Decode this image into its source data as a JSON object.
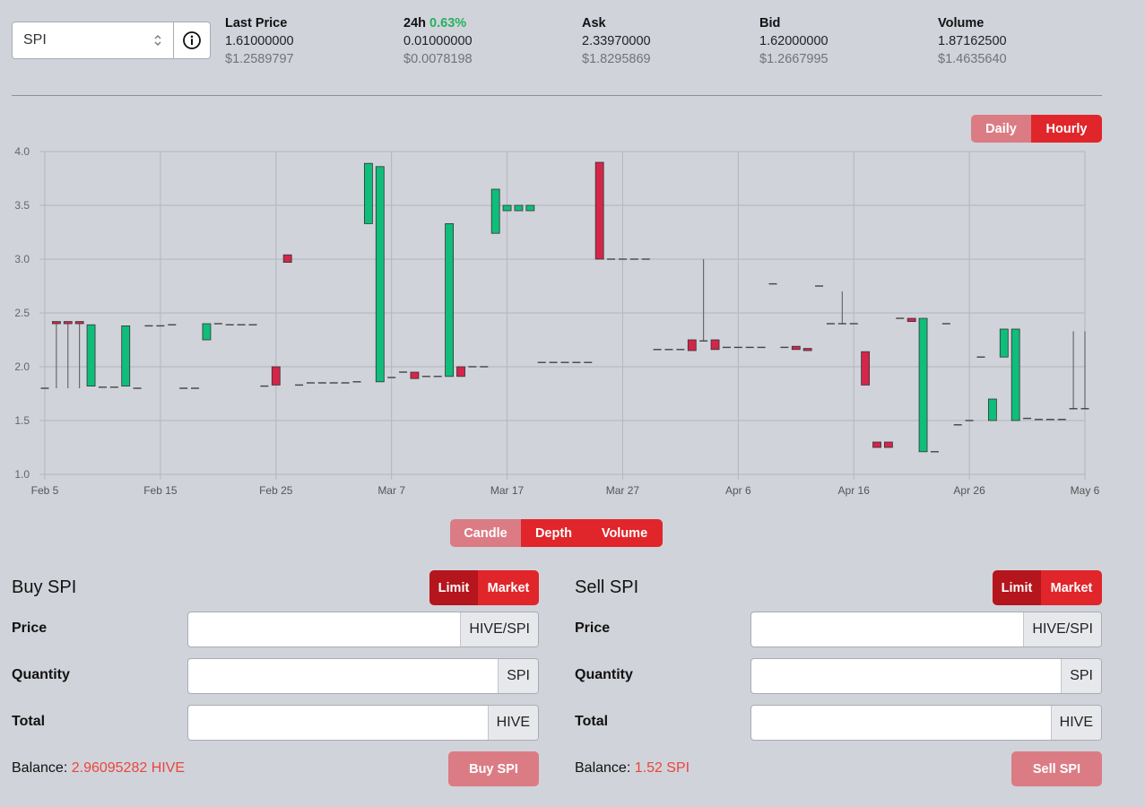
{
  "symbol": {
    "value": "SPI"
  },
  "stats": {
    "last_price": {
      "label": "Last Price",
      "value": "1.61000000",
      "usd": "$1.2589797"
    },
    "change_24h": {
      "label": "24h",
      "pct": "0.63%",
      "value": "0.01000000",
      "usd": "$0.0078198"
    },
    "ask": {
      "label": "Ask",
      "value": "2.33970000",
      "usd": "$1.8295869"
    },
    "bid": {
      "label": "Bid",
      "value": "1.62000000",
      "usd": "$1.2667995"
    },
    "volume": {
      "label": "Volume",
      "value": "1.87162500",
      "usd": "$1.4635640"
    }
  },
  "interval_toggle": {
    "daily": "Daily",
    "hourly": "Hourly",
    "active": "Hourly"
  },
  "chart_toggle": {
    "candle": "Candle",
    "depth": "Depth",
    "volume": "Volume",
    "active": "Candle"
  },
  "colors": {
    "up": "#10bd7a",
    "down": "#d3264a",
    "accent": "#e0262b"
  },
  "chart_data": {
    "type": "candlestick",
    "x_ticks": [
      "Feb 5",
      "Feb 15",
      "Feb 25",
      "Mar 7",
      "Mar 17",
      "Mar 27",
      "Apr 6",
      "Apr 16",
      "Apr 26",
      "May 6"
    ],
    "y_ticks": [
      "1.0",
      "1.5",
      "2.0",
      "2.5",
      "3.0",
      "3.5",
      "4.0"
    ],
    "ylim": [
      1.0,
      4.0
    ],
    "x_range": [
      "Feb 5",
      "May 6"
    ],
    "grid": true,
    "candles": [
      {
        "d": 0,
        "o": 1.8,
        "h": 1.8,
        "l": 1.8,
        "c": 1.8
      },
      {
        "d": 1,
        "o": 2.42,
        "h": 2.42,
        "l": 1.8,
        "c": 2.4
      },
      {
        "d": 2,
        "o": 2.42,
        "h": 2.42,
        "l": 1.8,
        "c": 2.4
      },
      {
        "d": 3,
        "o": 2.42,
        "h": 2.42,
        "l": 1.8,
        "c": 2.4
      },
      {
        "d": 4,
        "o": 1.82,
        "h": 2.39,
        "l": 1.82,
        "c": 2.39
      },
      {
        "d": 5,
        "o": 1.81,
        "h": 1.81,
        "l": 1.81,
        "c": 1.81
      },
      {
        "d": 6,
        "o": 1.81,
        "h": 1.81,
        "l": 1.81,
        "c": 1.81
      },
      {
        "d": 7,
        "o": 1.82,
        "h": 2.38,
        "l": 1.82,
        "c": 2.38
      },
      {
        "d": 8,
        "o": 1.8,
        "h": 1.8,
        "l": 1.8,
        "c": 1.8
      },
      {
        "d": 9,
        "o": 2.38,
        "h": 2.38,
        "l": 2.38,
        "c": 2.38
      },
      {
        "d": 10,
        "o": 2.38,
        "h": 2.38,
        "l": 2.38,
        "c": 2.38
      },
      {
        "d": 11,
        "o": 2.39,
        "h": 2.39,
        "l": 2.39,
        "c": 2.39
      },
      {
        "d": 12,
        "o": 1.8,
        "h": 1.8,
        "l": 1.8,
        "c": 1.8
      },
      {
        "d": 13,
        "o": 1.8,
        "h": 1.8,
        "l": 1.8,
        "c": 1.8
      },
      {
        "d": 14,
        "o": 2.25,
        "h": 2.4,
        "l": 2.25,
        "c": 2.4
      },
      {
        "d": 15,
        "o": 2.4,
        "h": 2.4,
        "l": 2.4,
        "c": 2.4
      },
      {
        "d": 16,
        "o": 2.39,
        "h": 2.39,
        "l": 2.39,
        "c": 2.39
      },
      {
        "d": 17,
        "o": 2.39,
        "h": 2.39,
        "l": 2.39,
        "c": 2.39
      },
      {
        "d": 18,
        "o": 2.39,
        "h": 2.39,
        "l": 2.39,
        "c": 2.39
      },
      {
        "d": 19,
        "o": 1.82,
        "h": 1.82,
        "l": 1.82,
        "c": 1.82
      },
      {
        "d": 20,
        "o": 2.0,
        "h": 2.0,
        "l": 1.83,
        "c": 1.83
      },
      {
        "d": 21,
        "o": 3.04,
        "h": 3.04,
        "l": 2.97,
        "c": 2.97
      },
      {
        "d": 22,
        "o": 1.83,
        "h": 1.83,
        "l": 1.83,
        "c": 1.83
      },
      {
        "d": 23,
        "o": 1.85,
        "h": 1.85,
        "l": 1.85,
        "c": 1.85
      },
      {
        "d": 24,
        "o": 1.85,
        "h": 1.85,
        "l": 1.85,
        "c": 1.85
      },
      {
        "d": 25,
        "o": 1.85,
        "h": 1.85,
        "l": 1.85,
        "c": 1.85
      },
      {
        "d": 26,
        "o": 1.85,
        "h": 1.85,
        "l": 1.85,
        "c": 1.85
      },
      {
        "d": 27,
        "o": 1.86,
        "h": 1.86,
        "l": 1.86,
        "c": 1.86
      },
      {
        "d": 28,
        "o": 3.33,
        "h": 3.89,
        "l": 3.33,
        "c": 3.89
      },
      {
        "d": 29,
        "o": 1.86,
        "h": 3.86,
        "l": 1.86,
        "c": 3.86
      },
      {
        "d": 30,
        "o": 1.9,
        "h": 1.9,
        "l": 1.9,
        "c": 1.9
      },
      {
        "d": 31,
        "o": 1.95,
        "h": 1.95,
        "l": 1.95,
        "c": 1.95
      },
      {
        "d": 32,
        "o": 1.95,
        "h": 1.95,
        "l": 1.89,
        "c": 1.89
      },
      {
        "d": 33,
        "o": 1.91,
        "h": 1.91,
        "l": 1.91,
        "c": 1.91
      },
      {
        "d": 34,
        "o": 1.91,
        "h": 1.91,
        "l": 1.91,
        "c": 1.91
      },
      {
        "d": 35,
        "o": 1.91,
        "h": 3.33,
        "l": 1.91,
        "c": 3.33
      },
      {
        "d": 36,
        "o": 2.0,
        "h": 2.0,
        "l": 1.91,
        "c": 1.91
      },
      {
        "d": 37,
        "o": 2.0,
        "h": 2.0,
        "l": 2.0,
        "c": 2.0
      },
      {
        "d": 38,
        "o": 2.0,
        "h": 2.0,
        "l": 2.0,
        "c": 2.0
      },
      {
        "d": 39,
        "o": 3.24,
        "h": 3.65,
        "l": 3.24,
        "c": 3.65
      },
      {
        "d": 40,
        "o": 3.45,
        "h": 3.5,
        "l": 3.45,
        "c": 3.5
      },
      {
        "d": 41,
        "o": 3.45,
        "h": 3.5,
        "l": 3.45,
        "c": 3.5
      },
      {
        "d": 42,
        "o": 3.45,
        "h": 3.5,
        "l": 3.45,
        "c": 3.5
      },
      {
        "d": 43,
        "o": 2.04,
        "h": 2.04,
        "l": 2.04,
        "c": 2.04
      },
      {
        "d": 44,
        "o": 2.04,
        "h": 2.04,
        "l": 2.04,
        "c": 2.04
      },
      {
        "d": 45,
        "o": 2.04,
        "h": 2.04,
        "l": 2.04,
        "c": 2.04
      },
      {
        "d": 46,
        "o": 2.04,
        "h": 2.04,
        "l": 2.04,
        "c": 2.04
      },
      {
        "d": 47,
        "o": 2.04,
        "h": 2.04,
        "l": 2.04,
        "c": 2.04
      },
      {
        "d": 48,
        "o": 3.9,
        "h": 3.9,
        "l": 3.0,
        "c": 3.0
      },
      {
        "d": 49,
        "o": 3.0,
        "h": 3.0,
        "l": 3.0,
        "c": 3.0
      },
      {
        "d": 50,
        "o": 3.0,
        "h": 3.0,
        "l": 3.0,
        "c": 3.0
      },
      {
        "d": 51,
        "o": 3.0,
        "h": 3.0,
        "l": 3.0,
        "c": 3.0
      },
      {
        "d": 52,
        "o": 3.0,
        "h": 3.0,
        "l": 3.0,
        "c": 3.0
      },
      {
        "d": 53,
        "o": 2.16,
        "h": 2.16,
        "l": 2.16,
        "c": 2.16
      },
      {
        "d": 54,
        "o": 2.16,
        "h": 2.16,
        "l": 2.16,
        "c": 2.16
      },
      {
        "d": 55,
        "o": 2.16,
        "h": 2.16,
        "l": 2.16,
        "c": 2.16
      },
      {
        "d": 56,
        "o": 2.25,
        "h": 2.25,
        "l": 2.15,
        "c": 2.15
      },
      {
        "d": 57,
        "o": 2.24,
        "h": 3.0,
        "l": 2.24,
        "c": 2.24
      },
      {
        "d": 58,
        "o": 2.25,
        "h": 2.25,
        "l": 2.16,
        "c": 2.16
      },
      {
        "d": 59,
        "o": 2.18,
        "h": 2.18,
        "l": 2.18,
        "c": 2.18
      },
      {
        "d": 60,
        "o": 2.18,
        "h": 2.18,
        "l": 2.18,
        "c": 2.18
      },
      {
        "d": 61,
        "o": 2.18,
        "h": 2.18,
        "l": 2.18,
        "c": 2.18
      },
      {
        "d": 62,
        "o": 2.18,
        "h": 2.18,
        "l": 2.18,
        "c": 2.18
      },
      {
        "d": 63,
        "o": 2.77,
        "h": 2.77,
        "l": 2.77,
        "c": 2.77
      },
      {
        "d": 64,
        "o": 2.18,
        "h": 2.18,
        "l": 2.18,
        "c": 2.18
      },
      {
        "d": 65,
        "o": 2.19,
        "h": 2.19,
        "l": 2.16,
        "c": 2.16
      },
      {
        "d": 66,
        "o": 2.17,
        "h": 2.17,
        "l": 2.15,
        "c": 2.15
      },
      {
        "d": 67,
        "o": 2.75,
        "h": 2.75,
        "l": 2.75,
        "c": 2.75
      },
      {
        "d": 68,
        "o": 2.4,
        "h": 2.4,
        "l": 2.4,
        "c": 2.4
      },
      {
        "d": 69,
        "o": 2.4,
        "h": 2.7,
        "l": 2.4,
        "c": 2.4
      },
      {
        "d": 70,
        "o": 2.4,
        "h": 2.4,
        "l": 2.4,
        "c": 2.4
      },
      {
        "d": 71,
        "o": 2.14,
        "h": 2.14,
        "l": 1.83,
        "c": 1.83
      },
      {
        "d": 72,
        "o": 1.3,
        "h": 1.3,
        "l": 1.25,
        "c": 1.25
      },
      {
        "d": 73,
        "o": 1.3,
        "h": 1.3,
        "l": 1.25,
        "c": 1.25
      },
      {
        "d": 74,
        "o": 2.45,
        "h": 2.45,
        "l": 2.45,
        "c": 2.45
      },
      {
        "d": 75,
        "o": 2.45,
        "h": 2.45,
        "l": 2.42,
        "c": 2.42
      },
      {
        "d": 76,
        "o": 1.21,
        "h": 2.45,
        "l": 1.21,
        "c": 2.45
      },
      {
        "d": 77,
        "o": 1.21,
        "h": 1.21,
        "l": 1.21,
        "c": 1.21
      },
      {
        "d": 78,
        "o": 2.4,
        "h": 2.4,
        "l": 2.4,
        "c": 2.4
      },
      {
        "d": 79,
        "o": 1.46,
        "h": 1.46,
        "l": 1.46,
        "c": 1.46
      },
      {
        "d": 80,
        "o": 1.5,
        "h": 1.5,
        "l": 1.5,
        "c": 1.5
      },
      {
        "d": 81,
        "o": 2.09,
        "h": 2.09,
        "l": 2.09,
        "c": 2.09
      },
      {
        "d": 82,
        "o": 1.5,
        "h": 1.7,
        "l": 1.5,
        "c": 1.7
      },
      {
        "d": 83,
        "o": 2.09,
        "h": 2.35,
        "l": 2.09,
        "c": 2.35
      },
      {
        "d": 84,
        "o": 1.5,
        "h": 2.35,
        "l": 1.5,
        "c": 2.35
      },
      {
        "d": 85,
        "o": 1.52,
        "h": 1.52,
        "l": 1.52,
        "c": 1.52
      },
      {
        "d": 86,
        "o": 1.51,
        "h": 1.51,
        "l": 1.51,
        "c": 1.51
      },
      {
        "d": 87,
        "o": 1.51,
        "h": 1.51,
        "l": 1.51,
        "c": 1.51
      },
      {
        "d": 88,
        "o": 1.51,
        "h": 1.51,
        "l": 1.51,
        "c": 1.51
      },
      {
        "d": 89,
        "o": 1.61,
        "h": 2.33,
        "l": 1.61,
        "c": 1.61
      },
      {
        "d": 90,
        "o": 1.61,
        "h": 2.33,
        "l": 1.61,
        "c": 1.61
      }
    ]
  },
  "buy": {
    "title": "Buy SPI",
    "limit": "Limit",
    "market": "Market",
    "price_label": "Price",
    "price_unit": "HIVE/SPI",
    "qty_label": "Quantity",
    "qty_unit": "SPI",
    "total_label": "Total",
    "total_unit": "HIVE",
    "balance_label": "Balance:",
    "balance": "2.96095282 HIVE",
    "action": "Buy SPI"
  },
  "sell": {
    "title": "Sell SPI",
    "limit": "Limit",
    "market": "Market",
    "price_label": "Price",
    "price_unit": "HIVE/SPI",
    "qty_label": "Quantity",
    "qty_unit": "SPI",
    "total_label": "Total",
    "total_unit": "HIVE",
    "balance_label": "Balance:",
    "balance": "1.52 SPI",
    "action": "Sell SPI"
  }
}
